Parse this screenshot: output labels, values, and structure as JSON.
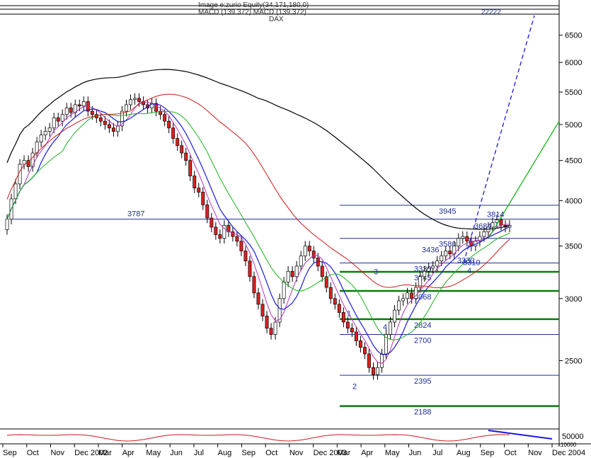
{
  "header": {
    "line1": "Image e:zurio Equity(34,171,180,0)",
    "line2": "MACD (139.372) MACD (139.372)",
    "instrument": "DAX",
    "top_number": "22222"
  },
  "chart_data": {
    "type": "candlestick",
    "title": "DAX",
    "y_axis": {
      "side": "right",
      "scale": "log",
      "range": [
        2050,
        6800
      ],
      "ticks": [
        2500,
        3000,
        3500,
        4000,
        4500,
        5000,
        5500,
        6000,
        6500
      ]
    },
    "x_axis": {
      "labels": [
        "Sep",
        "Oct",
        "Nov",
        "Dec 2002",
        "Mar",
        "Apr",
        "May",
        "Jun",
        "Jul",
        "Aug",
        "Sep",
        "Oct",
        "Nov",
        "Dec 2003",
        "Mar",
        "Apr",
        "May",
        "Jun",
        "Jul",
        "Aug",
        "Sep",
        "Oct",
        "Nov",
        "Dec 2004"
      ]
    },
    "weekly_closes": [
      3787,
      4020,
      4200,
      4450,
      4500,
      4420,
      4600,
      4750,
      4850,
      4900,
      4950,
      5100,
      5050,
      5150,
      5250,
      5180,
      5300,
      5280,
      5350,
      5200,
      5150,
      5100,
      5050,
      5000,
      4950,
      4900,
      4980,
      5200,
      5300,
      5380,
      5400,
      5350,
      5300,
      5250,
      5320,
      5200,
      5150,
      5050,
      4950,
      4800,
      4700,
      4600,
      4500,
      4300,
      4150,
      4100,
      3950,
      3800,
      3700,
      3620,
      3580,
      3720,
      3650,
      3600,
      3550,
      3450,
      3350,
      3200,
      3050,
      2950,
      2850,
      2750,
      2700,
      2800,
      3000,
      3150,
      3250,
      3200,
      3300,
      3400,
      3500,
      3450,
      3380,
      3300,
      3200,
      3100,
      3000,
      2950,
      2880,
      2800,
      2750,
      2720,
      2650,
      2600,
      2550,
      2450,
      2400,
      2450,
      2550,
      2700,
      2800,
      2900,
      2980,
      3000,
      3050,
      3000,
      3100,
      3200,
      3250,
      3280,
      3300,
      3350,
      3400,
      3450,
      3420,
      3500,
      3580,
      3600,
      3550,
      3500,
      3550,
      3600,
      3650,
      3700,
      3750,
      3780,
      3720,
      3700,
      3720
    ],
    "horizontal_levels": [
      {
        "value": 3945,
        "label": "3945",
        "color": "#1e2f9c"
      },
      {
        "value": 3787,
        "label": "3787",
        "color": "#1e2f9c"
      },
      {
        "value": 3580,
        "label": "3580",
        "color": "#1e2f9c"
      },
      {
        "value": 3330,
        "label": "3330",
        "color": "#1e2f9c"
      },
      {
        "value": 3245,
        "label": "3245",
        "color": "#0a7d0a"
      },
      {
        "value": 3068,
        "label": "3068",
        "color": "#0a7d0a"
      },
      {
        "value": 2824,
        "label": "2824",
        "color": "#0a7d0a"
      },
      {
        "value": 2700,
        "label": "2700",
        "color": "#1e2f9c"
      },
      {
        "value": 2395,
        "label": "2395",
        "color": "#1e2f9c"
      },
      {
        "value": 2188,
        "label": "2188",
        "color": "#0a7d0a"
      }
    ],
    "wave_labels": [
      "1",
      "2",
      "3",
      "4"
    ],
    "extra_labels": [
      "3814",
      "3684",
      "3436",
      "3310",
      "3330",
      "4"
    ],
    "indicator": {
      "label": "MACD",
      "scale_label": "50000",
      "unit_label": "x10000"
    },
    "colors": {
      "up": "#ffffff",
      "down": "#e02020",
      "sma_blue": "#1a1adc",
      "sma_green": "#19b319",
      "sma_red": "#cc1a1a",
      "sma_black": "#000000",
      "sma_magenta": "#bb33bb"
    }
  }
}
